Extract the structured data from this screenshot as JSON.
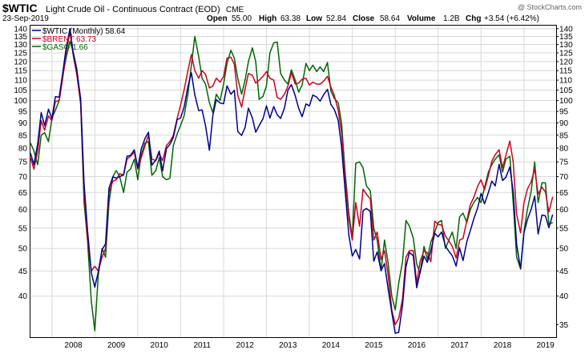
{
  "header": {
    "symbol": "$WTIC",
    "description": "Light Crude Oil - Continuous Contract (EOD)",
    "exchange": "CME",
    "date": "23-Sep-2019",
    "watermark": "@ StockCharts.com",
    "ohlc": {
      "open_label": "Open",
      "open": "55.00",
      "high_label": "High",
      "high": "63.38",
      "low_label": "Low",
      "low": "52.84",
      "close_label": "Close",
      "close": "58.64",
      "volume_label": "Volume",
      "volume": "1.2B",
      "chg_label": "Chg",
      "chg": "+3.54 (+6.42%)"
    }
  },
  "chart_data": {
    "type": "line",
    "scale": "log",
    "grid": true,
    "legend_placement": "top-left",
    "left_axis": {
      "range": [
        33.0,
        142.0
      ],
      "ticks": [
        40,
        45,
        50,
        55,
        60,
        65,
        70,
        75,
        80,
        85,
        90,
        95,
        100,
        105,
        110,
        115,
        120,
        125,
        130,
        135,
        140
      ]
    },
    "right_axis": {
      "range": [
        33.0,
        142.0
      ],
      "ticks": [
        35,
        40,
        45,
        50,
        55,
        60,
        65,
        70,
        75,
        80,
        85,
        90,
        95,
        100,
        105,
        110,
        115,
        120,
        125,
        130,
        135,
        140
      ]
    },
    "x_ticks": [
      "2008",
      "2009",
      "2010",
      "2011",
      "2012",
      "2013",
      "2014",
      "2015",
      "2016",
      "2017",
      "2018",
      "2019"
    ],
    "x_start": 2007.5,
    "x_end": 2019.75,
    "series": [
      {
        "name": "$WTIC (Monthly) 58.64",
        "color": "#00008b",
        "axis": "left",
        "x": [
          2007.5,
          2007.58,
          2007.67,
          2007.75,
          2007.83,
          2007.92,
          2008.0,
          2008.08,
          2008.17,
          2008.25,
          2008.33,
          2008.42,
          2008.5,
          2008.58,
          2008.67,
          2008.75,
          2008.83,
          2008.92,
          2009.0,
          2009.08,
          2009.17,
          2009.25,
          2009.33,
          2009.42,
          2009.5,
          2009.58,
          2009.67,
          2009.75,
          2009.83,
          2009.92,
          2010.0,
          2010.08,
          2010.17,
          2010.25,
          2010.33,
          2010.42,
          2010.5,
          2010.58,
          2010.67,
          2010.75,
          2010.83,
          2010.92,
          2011.0,
          2011.08,
          2011.17,
          2011.25,
          2011.33,
          2011.42,
          2011.5,
          2011.58,
          2011.67,
          2011.75,
          2011.83,
          2011.92,
          2012.0,
          2012.08,
          2012.17,
          2012.25,
          2012.33,
          2012.42,
          2012.5,
          2012.58,
          2012.67,
          2012.75,
          2012.83,
          2012.92,
          2013.0,
          2013.08,
          2013.17,
          2013.25,
          2013.33,
          2013.42,
          2013.5,
          2013.58,
          2013.67,
          2013.75,
          2013.83,
          2013.92,
          2014.0,
          2014.08,
          2014.17,
          2014.25,
          2014.33,
          2014.42,
          2014.5,
          2014.58,
          2014.67,
          2014.75,
          2014.83,
          2014.92,
          2015.0,
          2015.08,
          2015.17,
          2015.25,
          2015.33,
          2015.42,
          2015.5,
          2015.58,
          2015.67,
          2015.75,
          2015.83,
          2015.92,
          2016.0,
          2016.08,
          2016.17,
          2016.25,
          2016.33,
          2016.42,
          2016.5,
          2016.58,
          2016.67,
          2016.75,
          2016.83,
          2016.92,
          2017.0,
          2017.08,
          2017.17,
          2017.25,
          2017.33,
          2017.42,
          2017.5,
          2017.58,
          2017.67,
          2017.75,
          2017.83,
          2017.92,
          2018.0,
          2018.08,
          2018.17,
          2018.25,
          2018.33,
          2018.42,
          2018.5,
          2018.58,
          2018.67,
          2018.75,
          2018.83,
          2018.92,
          2019.0,
          2019.08,
          2019.17,
          2019.25,
          2019.33,
          2019.42,
          2019.5,
          2019.58,
          2019.67
        ],
        "values": [
          78.2,
          74.0,
          81.7,
          94.5,
          88.9,
          96.0,
          91.8,
          101.8,
          101.6,
          113.5,
          127.4,
          140.0,
          124.1,
          115.5,
          100.6,
          67.8,
          54.4,
          44.6,
          41.7,
          44.8,
          49.7,
          51.1,
          66.3,
          69.9,
          69.5,
          70.0,
          70.6,
          77.0,
          77.3,
          79.4,
          72.9,
          79.6,
          83.8,
          86.2,
          73.9,
          75.6,
          78.9,
          71.9,
          79.9,
          81.4,
          84.1,
          91.4,
          92.2,
          96.9,
          106.7,
          113.9,
          102.7,
          95.4,
          95.7,
          88.8,
          79.2,
          93.2,
          100.4,
          98.8,
          98.5,
          107.1,
          103.0,
          104.9,
          86.5,
          84.9,
          88.1,
          96.5,
          92.2,
          86.2,
          88.9,
          91.8,
          97.5,
          92.1,
          97.2,
          93.5,
          91.97,
          96.56,
          105.0,
          107.7,
          102.3,
          96.4,
          92.7,
          98.4,
          97.5,
          102.6,
          101.6,
          99.7,
          102.7,
          105.4,
          98.2,
          95.96,
          91.16,
          80.54,
          66.15,
          53.27,
          48.24,
          49.76,
          47.6,
          59.63,
          60.3,
          59.47,
          47.12,
          49.2,
          45.09,
          46.59,
          41.65,
          37.04,
          33.62,
          33.75,
          38.34,
          45.92,
          49.1,
          48.33,
          41.6,
          44.7,
          48.24,
          46.86,
          49.44,
          53.72,
          52.81,
          54.01,
          50.6,
          49.33,
          48.32,
          46.04,
          50.17,
          47.23,
          51.67,
          54.38,
          57.4,
          60.42,
          64.73,
          61.64,
          64.94,
          68.57,
          67.04,
          74.15,
          68.76,
          69.8,
          73.25,
          65.31,
          50.93,
          45.41,
          53.79,
          57.22,
          60.14,
          63.91,
          53.5,
          58.47,
          58.26,
          55.1,
          58.64
        ]
      },
      {
        "name": "$BRENT 63.73",
        "color": "#cc0022",
        "axis": "right",
        "x": [
          2007.5,
          2007.58,
          2007.67,
          2007.75,
          2007.83,
          2007.92,
          2008.0,
          2008.08,
          2008.17,
          2008.25,
          2008.33,
          2008.42,
          2008.5,
          2008.58,
          2008.67,
          2008.75,
          2008.83,
          2008.92,
          2009.0,
          2009.08,
          2009.17,
          2009.25,
          2009.33,
          2009.42,
          2009.5,
          2009.58,
          2009.67,
          2009.75,
          2009.83,
          2009.92,
          2010.0,
          2010.08,
          2010.17,
          2010.25,
          2010.33,
          2010.42,
          2010.5,
          2010.58,
          2010.67,
          2010.75,
          2010.83,
          2010.92,
          2011.0,
          2011.08,
          2011.17,
          2011.25,
          2011.33,
          2011.42,
          2011.5,
          2011.58,
          2011.67,
          2011.75,
          2011.83,
          2011.92,
          2012.0,
          2012.08,
          2012.17,
          2012.25,
          2012.33,
          2012.42,
          2012.5,
          2012.58,
          2012.67,
          2012.75,
          2012.83,
          2012.92,
          2013.0,
          2013.08,
          2013.17,
          2013.25,
          2013.33,
          2013.42,
          2013.5,
          2013.58,
          2013.67,
          2013.75,
          2013.83,
          2013.92,
          2014.0,
          2014.08,
          2014.17,
          2014.25,
          2014.33,
          2014.42,
          2014.5,
          2014.58,
          2014.67,
          2014.75,
          2014.83,
          2014.92,
          2015.0,
          2015.08,
          2015.17,
          2015.25,
          2015.33,
          2015.42,
          2015.5,
          2015.58,
          2015.67,
          2015.75,
          2015.83,
          2015.92,
          2016.0,
          2016.08,
          2016.17,
          2016.25,
          2016.33,
          2016.42,
          2016.5,
          2016.58,
          2016.67,
          2016.75,
          2016.83,
          2016.92,
          2017.0,
          2017.08,
          2017.17,
          2017.25,
          2017.33,
          2017.42,
          2017.5,
          2017.58,
          2017.67,
          2017.75,
          2017.83,
          2017.92,
          2018.0,
          2018.08,
          2018.17,
          2018.25,
          2018.33,
          2018.42,
          2018.5,
          2018.58,
          2018.67,
          2018.75,
          2018.83,
          2018.92,
          2019.0,
          2019.08,
          2019.17,
          2019.25,
          2019.33,
          2019.42,
          2019.5,
          2019.58,
          2019.67
        ],
        "values": [
          76.5,
          72.5,
          79.0,
          91.0,
          87.0,
          93.0,
          91.0,
          99.5,
          100.0,
          111.0,
          125.0,
          138.0,
          123.0,
          113.0,
          98.5,
          65.0,
          52.0,
          45.0,
          46.0,
          45.0,
          48.0,
          50.0,
          65.0,
          68.5,
          69.0,
          71.0,
          70.5,
          76.0,
          77.0,
          78.5,
          72.5,
          76.5,
          81.0,
          85.0,
          76.0,
          75.5,
          78.0,
          75.5,
          81.0,
          82.5,
          85.0,
          92.0,
          98.0,
          105.0,
          115.0,
          124.0,
          115.0,
          111.0,
          115.0,
          113.0,
          106.0,
          107.0,
          111.0,
          109.0,
          112.0,
          122.0,
          122.5,
          118.5,
          102.5,
          97.0,
          105.5,
          113.5,
          112.5,
          108.5,
          110.0,
          112.0,
          114.5,
          111.0,
          110.0,
          101.5,
          100.5,
          103.0,
          107.0,
          114.0,
          108.0,
          108.5,
          110.5,
          111.0,
          107.5,
          109.0,
          108.0,
          108.0,
          109.5,
          112.0,
          106.5,
          102.5,
          95.5,
          86.0,
          70.0,
          57.5,
          52.0,
          62.0,
          55.5,
          66.0,
          64.5,
          63.0,
          52.0,
          54.0,
          47.5,
          49.5,
          44.5,
          37.5,
          35.0,
          36.0,
          39.5,
          48.0,
          49.5,
          49.5,
          42.5,
          47.0,
          49.5,
          49.0,
          47.0,
          56.8,
          56.0,
          55.8,
          53.0,
          51.8,
          50.5,
          47.8,
          52.0,
          52.4,
          57.0,
          61.4,
          63.5,
          66.9,
          69.0,
          65.8,
          70.3,
          75.2,
          77.6,
          79.4,
          73.0,
          77.4,
          82.7,
          75.0,
          58.7,
          53.8,
          61.9,
          66.0,
          68.4,
          72.5,
          64.5,
          66.6,
          65.2,
          59.3,
          63.73
        ]
      },
      {
        "name": "$GASO 1.66",
        "color": "#006600",
        "axis": "left",
        "x": [
          2007.5,
          2007.58,
          2007.67,
          2007.75,
          2007.83,
          2007.92,
          2008.0,
          2008.08,
          2008.17,
          2008.25,
          2008.33,
          2008.42,
          2008.5,
          2008.58,
          2008.67,
          2008.75,
          2008.83,
          2008.92,
          2009.0,
          2009.08,
          2009.17,
          2009.25,
          2009.33,
          2009.42,
          2009.5,
          2009.58,
          2009.67,
          2009.75,
          2009.83,
          2009.92,
          2010.0,
          2010.08,
          2010.17,
          2010.25,
          2010.33,
          2010.42,
          2010.5,
          2010.58,
          2010.67,
          2010.75,
          2010.83,
          2010.92,
          2011.0,
          2011.08,
          2011.17,
          2011.25,
          2011.33,
          2011.42,
          2011.5,
          2011.58,
          2011.67,
          2011.75,
          2011.83,
          2011.92,
          2012.0,
          2012.08,
          2012.17,
          2012.25,
          2012.33,
          2012.42,
          2012.5,
          2012.58,
          2012.67,
          2012.75,
          2012.83,
          2012.92,
          2013.0,
          2013.08,
          2013.17,
          2013.25,
          2013.33,
          2013.42,
          2013.5,
          2013.58,
          2013.67,
          2013.75,
          2013.83,
          2013.92,
          2014.0,
          2014.08,
          2014.17,
          2014.25,
          2014.33,
          2014.42,
          2014.5,
          2014.58,
          2014.67,
          2014.75,
          2014.83,
          2014.92,
          2015.0,
          2015.08,
          2015.17,
          2015.25,
          2015.33,
          2015.42,
          2015.5,
          2015.58,
          2015.67,
          2015.75,
          2015.83,
          2015.92,
          2016.0,
          2016.08,
          2016.17,
          2016.25,
          2016.33,
          2016.42,
          2016.5,
          2016.58,
          2016.67,
          2016.75,
          2016.83,
          2016.92,
          2017.0,
          2017.08,
          2017.17,
          2017.25,
          2017.33,
          2017.42,
          2017.5,
          2017.58,
          2017.67,
          2017.75,
          2017.83,
          2017.92,
          2018.0,
          2018.08,
          2018.17,
          2018.25,
          2018.33,
          2018.42,
          2018.5,
          2018.58,
          2018.67,
          2018.75,
          2018.83,
          2018.92,
          2019.0,
          2019.08,
          2019.17,
          2019.25,
          2019.33,
          2019.42,
          2019.5,
          2019.58,
          2019.67
        ],
        "values": [
          82.0,
          79.0,
          74.0,
          85.0,
          86.0,
          82.5,
          92.0,
          95.5,
          100.0,
          112.0,
          122.0,
          132.0,
          125.0,
          116.0,
          98.0,
          62.0,
          52.0,
          39.0,
          34.0,
          44.0,
          50.0,
          48.0,
          62.0,
          70.0,
          72.0,
          70.0,
          65.0,
          71.5,
          72.5,
          76.0,
          69.0,
          77.5,
          82.0,
          82.5,
          70.5,
          72.0,
          76.5,
          70.0,
          69.0,
          69.5,
          81.0,
          85.5,
          89.0,
          93.0,
          103.0,
          118.0,
          135.0,
          123.0,
          111.0,
          108.0,
          99.0,
          94.5,
          103.0,
          100.0,
          108.0,
          119.0,
          126.5,
          122.0,
          111.0,
          103.0,
          110.0,
          120.0,
          128.0,
          120.0,
          100.5,
          102.0,
          107.0,
          125.0,
          131.0,
          131.5,
          113.5,
          110.0,
          108.0,
          115.5,
          110.0,
          104.0,
          107.5,
          119.0,
          115.0,
          118.0,
          114.5,
          117.0,
          114.5,
          119.5,
          104.5,
          101.0,
          99.0,
          90.0,
          72.0,
          59.0,
          52.5,
          74.5,
          75.0,
          73.0,
          67.0,
          65.5,
          55.0,
          52.0,
          45.0,
          52.0,
          47.0,
          40.0,
          37.5,
          42.5,
          47.0,
          57.0,
          55.5,
          52.5,
          46.5,
          44.5,
          50.5,
          47.5,
          51.5,
          54.0,
          56.5,
          57.0,
          50.0,
          52.0,
          54.0,
          50.0,
          58.0,
          59.0,
          56.5,
          60.0,
          62.0,
          63.5,
          62.0,
          66.5,
          71.5,
          74.0,
          76.0,
          77.5,
          71.5,
          76.0,
          77.0,
          62.0,
          48.0,
          45.5,
          54.0,
          60.0,
          65.5,
          75.0,
          62.0,
          68.0,
          68.0,
          56.0,
          56.5
        ]
      }
    ]
  }
}
